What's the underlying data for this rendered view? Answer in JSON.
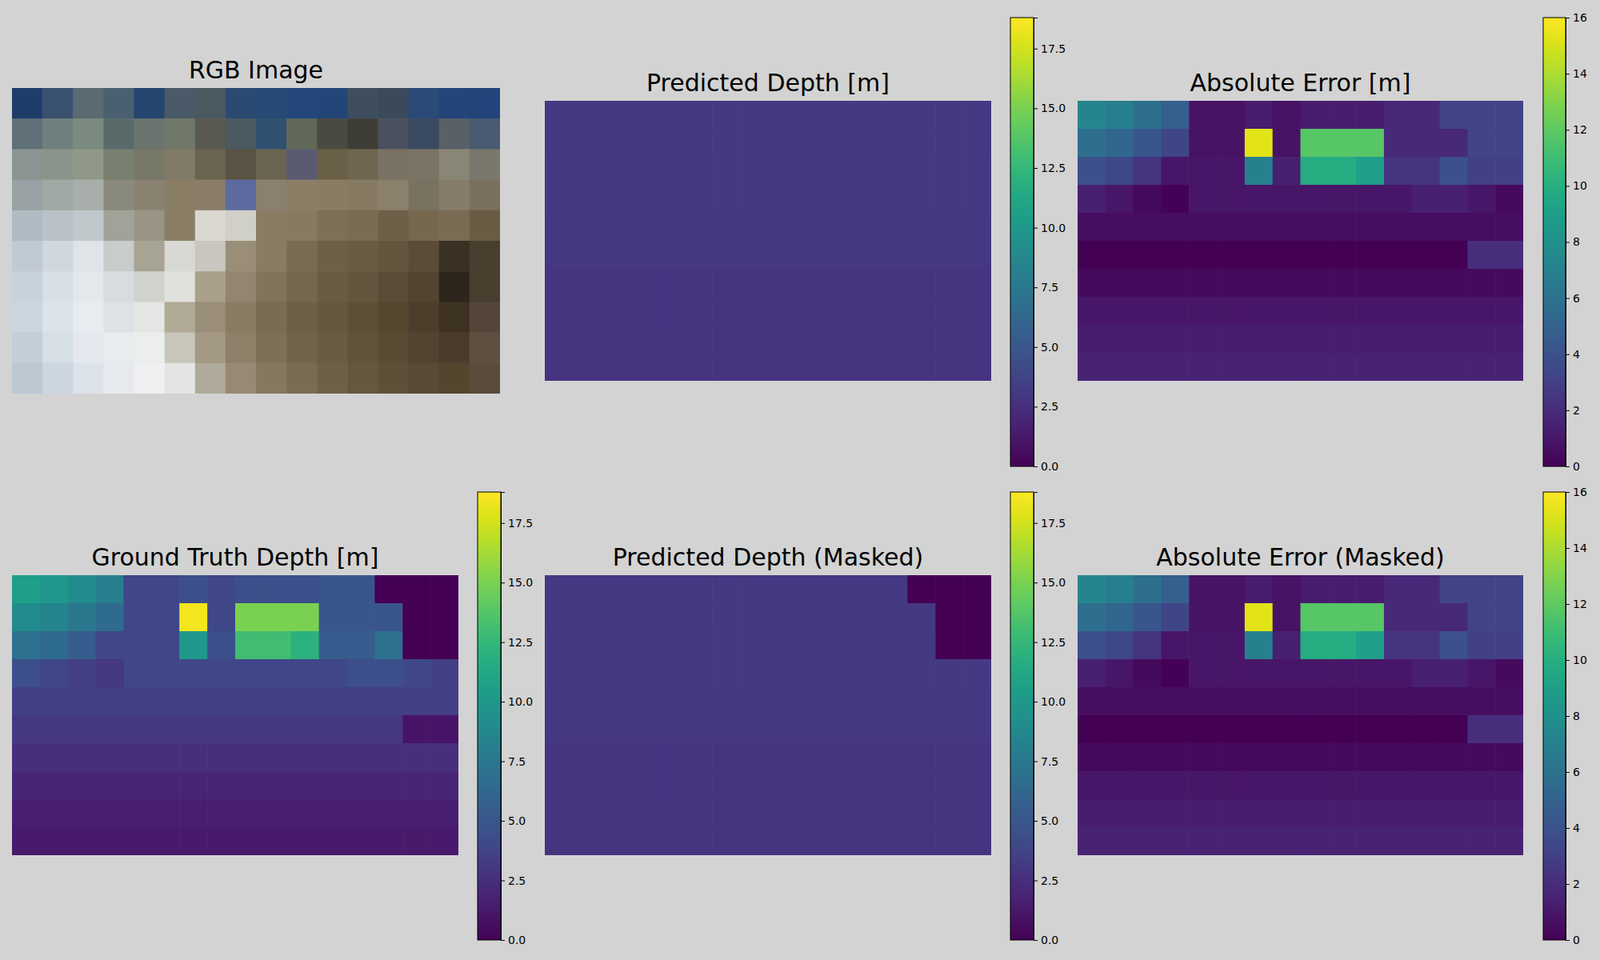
{
  "chart_data": [
    {
      "type": "image",
      "title": "RGB Image",
      "pixels": [
        [
          "#1f3d6b",
          "#3a5270",
          "#5a6a70",
          "#4a6070",
          "#25456f",
          "#4a5a68",
          "#4a5a60",
          "#2a4a72",
          "#264a74",
          "#23477a",
          "#234678",
          "#3e4e5e",
          "#3a4a5a",
          "#2a4a78",
          "#23457a",
          "#22447a"
        ],
        [
          "#607078",
          "#70807e",
          "#7a8a80",
          "#5a6a6a",
          "#6a7570",
          "#70786a",
          "#5a5a50",
          "#4a5a60",
          "#305070",
          "#606858",
          "#4a4a40",
          "#3e3e36",
          "#4a5060",
          "#3a4a60",
          "#5a6068",
          "#4a5a70"
        ],
        [
          "#8a9490",
          "#8a948a",
          "#909888",
          "#7a8070",
          "#787868",
          "#807a66",
          "#6a6450",
          "#5a5444",
          "#6a6450",
          "#5a5a70",
          "#6a6048",
          "#6e6650",
          "#7a7262",
          "#7a7464",
          "#8a8676",
          "#7a786c"
        ],
        [
          "#98a2a4",
          "#a0a8a4",
          "#a8aeaa",
          "#8a8a7c",
          "#8a8270",
          "#8a7e66",
          "#8a7e68",
          "#5c6aa0",
          "#8a8070",
          "#8a7e66",
          "#8a7c62",
          "#867a62",
          "#8a806c",
          "#7a7260",
          "#867c6a",
          "#7a705e"
        ],
        [
          "#b0bac2",
          "#b8c2c8",
          "#c0c8cc",
          "#a0a498",
          "#9a9484",
          "#8a7e66",
          "#dad8d0",
          "#d0d0c8",
          "#8a7c62",
          "#867a60",
          "#7e7058",
          "#7a6c54",
          "#6e6048",
          "#76684e",
          "#7a6c54",
          "#6a5c44"
        ],
        [
          "#c0cad2",
          "#d0d8de",
          "#dfe4e8",
          "#c8ccca",
          "#a8a494",
          "#d8d8d4",
          "#c8c6be",
          "#9a8e78",
          "#8a7c62",
          "#7a6c52",
          "#6e6046",
          "#6a5c42",
          "#64563e",
          "#5a4c36",
          "#3a3024",
          "#4a3e2e"
        ],
        [
          "#c8d2da",
          "#d8e0e6",
          "#e4e8ec",
          "#d6dce0",
          "#d0d2cc",
          "#e0e0dc",
          "#a8a08a",
          "#928670",
          "#82745a",
          "#76684e",
          "#6a5c42",
          "#64563e",
          "#5a4c36",
          "#52442e",
          "#2e261c",
          "#4a3e2e"
        ],
        [
          "#ccd6de",
          "#dce4ea",
          "#e8ecf0",
          "#dde2e6",
          "#e4e6e4",
          "#b0aa96",
          "#9a8e78",
          "#8a7c64",
          "#7a6c54",
          "#6e6048",
          "#66583e",
          "#5e5038",
          "#56482e",
          "#4c3e2a",
          "#3e3222",
          "#54463a"
        ],
        [
          "#c4ced8",
          "#d6dee6",
          "#e4e8ee",
          "#e8ecee",
          "#eceeee",
          "#c8c6ba",
          "#a29884",
          "#8e8068",
          "#7e7058",
          "#72644a",
          "#6a5c42",
          "#62543a",
          "#5a4c34",
          "#524430",
          "#4a3c2a",
          "#5e5040"
        ],
        [
          "#bcc8d2",
          "#ccd6e0",
          "#dce2ea",
          "#e6eaee",
          "#f0f0f2",
          "#e4e4e2",
          "#b0aa9a",
          "#968a74",
          "#86785e",
          "#7a6c52",
          "#6e6048",
          "#66583e",
          "#5e5038",
          "#584a34",
          "#54462e",
          "#5a4c3a"
        ]
      ]
    },
    {
      "type": "heatmap",
      "title": "Predicted Depth [m]",
      "tick_labels": false,
      "values": [
        [
          3.2,
          3.2,
          3.2,
          3.2,
          3.2,
          3.2,
          3.2,
          3.2,
          3.2,
          3.2,
          3.2,
          3.2,
          3.2,
          3.2,
          3.2,
          3.2
        ],
        [
          3.2,
          3.2,
          3.2,
          3.2,
          3.2,
          3.2,
          3.2,
          3.2,
          3.2,
          3.2,
          3.2,
          3.2,
          3.2,
          3.2,
          3.2,
          3.2
        ],
        [
          3.1,
          3.1,
          3.1,
          3.1,
          3.1,
          3.1,
          3.1,
          3.1,
          3.1,
          3.1,
          3.1,
          3.1,
          3.1,
          3.1,
          3.1,
          3.1
        ],
        [
          3.1,
          3.1,
          3.1,
          3.1,
          3.1,
          3.1,
          3.1,
          3.1,
          3.1,
          3.1,
          3.1,
          3.1,
          3.1,
          3.1,
          3.1,
          3.1
        ],
        [
          3,
          3,
          3,
          3,
          3,
          3,
          3,
          3,
          3,
          3,
          3,
          3,
          3,
          3,
          3,
          3
        ],
        [
          3,
          3,
          3,
          3,
          3,
          3,
          3,
          3,
          3,
          3,
          3,
          3,
          3,
          3,
          3,
          3
        ],
        [
          2.9,
          2.9,
          2.9,
          2.9,
          2.9,
          2.9,
          2.9,
          2.9,
          2.9,
          2.9,
          2.9,
          2.9,
          2.9,
          2.9,
          2.9,
          2.9
        ],
        [
          2.9,
          2.9,
          2.9,
          2.9,
          2.9,
          2.9,
          2.9,
          2.9,
          2.9,
          2.9,
          2.9,
          2.9,
          2.9,
          2.9,
          2.9,
          2.9
        ],
        [
          2.8,
          2.8,
          2.8,
          2.8,
          2.8,
          2.8,
          2.8,
          2.8,
          2.8,
          2.8,
          2.8,
          2.8,
          2.8,
          2.8,
          2.8,
          2.8
        ],
        [
          2.8,
          2.8,
          2.8,
          2.8,
          2.8,
          2.8,
          2.8,
          2.8,
          2.8,
          2.8,
          2.8,
          2.8,
          2.8,
          2.8,
          2.8,
          2.8
        ]
      ],
      "colorbar": {
        "range": [
          0,
          18.8
        ],
        "ticks": [
          {
            "value": 0,
            "label": "0.0"
          },
          2.5,
          {
            "value": 5,
            "label": "5.0"
          },
          7.5,
          {
            "value": 10,
            "label": "10.0"
          },
          12.5,
          {
            "value": 15,
            "label": "15.0"
          },
          17.5
        ]
      }
    },
    {
      "type": "heatmap",
      "title": "Absolute Error [m]",
      "tick_labels": false,
      "values": [
        [
          7.3,
          6.8,
          5.8,
          4.8,
          0.8,
          0.8,
          1.3,
          0.8,
          1.3,
          1.3,
          1.3,
          1.8,
          1.8,
          3.2,
          3.2,
          3.2
        ],
        [
          5.8,
          5.3,
          4.3,
          3.3,
          0.8,
          0.8,
          15.3,
          0.8,
          11.8,
          11.8,
          11.8,
          1.8,
          1.8,
          1.8,
          3.2,
          3.2
        ],
        [
          3.9,
          3.4,
          2.4,
          0.9,
          0.9,
          0.9,
          6.9,
          1.4,
          9.9,
          9.9,
          8.9,
          2.4,
          2.4,
          3.9,
          3.1,
          3.1
        ],
        [
          1.4,
          0.9,
          0.4,
          0.1,
          0.9,
          0.9,
          0.9,
          0.9,
          0.9,
          0.9,
          0.9,
          0.9,
          1.4,
          1.4,
          0.9,
          0.4
        ],
        [
          0.5,
          0.5,
          0.5,
          0.5,
          0.5,
          0.5,
          0.5,
          0.5,
          0.5,
          0.5,
          0.5,
          0.5,
          0.5,
          0.5,
          0.5,
          0.5
        ],
        [
          0,
          0,
          0,
          0,
          0,
          0,
          0,
          0,
          0,
          0,
          0,
          0,
          0,
          0,
          2,
          2
        ],
        [
          0.4,
          0.4,
          0.4,
          0.4,
          0.4,
          0.4,
          0.4,
          0.4,
          0.4,
          0.4,
          0.4,
          0.4,
          0.4,
          0.4,
          0.4,
          0.4
        ],
        [
          0.9,
          0.9,
          0.9,
          0.9,
          0.9,
          0.9,
          0.9,
          0.9,
          0.9,
          0.9,
          0.9,
          0.9,
          0.9,
          0.9,
          0.9,
          0.9
        ],
        [
          1.2,
          1.2,
          1.2,
          1.2,
          1.2,
          1.2,
          1.2,
          1.2,
          1.2,
          1.2,
          1.2,
          1.2,
          1.2,
          1.2,
          1.2,
          1.2
        ],
        [
          1.5,
          1.5,
          1.5,
          1.5,
          1.5,
          1.5,
          1.5,
          1.5,
          1.5,
          1.5,
          1.5,
          1.5,
          1.5,
          1.5,
          1.5,
          1.5
        ]
      ],
      "colorbar": {
        "range": [
          0,
          16
        ],
        "ticks": [
          0,
          2,
          4,
          6,
          8,
          10,
          12,
          14,
          16
        ]
      }
    },
    {
      "type": "heatmap",
      "title": "Ground Truth Depth [m]",
      "tick_labels": false,
      "values": [
        [
          10.5,
          10,
          9,
          8,
          4,
          4,
          4.5,
          4,
          4.5,
          4.5,
          4.5,
          5,
          5,
          0,
          0,
          0
        ],
        [
          9,
          8.5,
          7.5,
          6.5,
          4,
          4,
          18.5,
          4,
          15,
          15,
          15,
          5,
          5,
          5,
          0,
          0
        ],
        [
          7,
          6.5,
          5.5,
          4,
          4,
          4,
          10,
          4.5,
          13,
          13,
          12,
          5.5,
          5.5,
          7,
          0,
          0
        ],
        [
          4.5,
          4,
          3.5,
          3,
          4,
          4,
          4,
          4,
          4,
          4,
          4,
          4,
          4.5,
          4.5,
          4,
          3.5
        ],
        [
          3.5,
          3.5,
          3.5,
          3.5,
          3.5,
          3.5,
          3.5,
          3.5,
          3.5,
          3.5,
          3.5,
          3.5,
          3.5,
          3.5,
          3.5,
          3.5
        ],
        [
          3,
          3,
          3,
          3,
          3,
          3,
          3,
          3,
          3,
          3,
          3,
          3,
          3,
          3,
          1,
          1
        ],
        [
          2.5,
          2.5,
          2.5,
          2.5,
          2.5,
          2.5,
          2.5,
          2.5,
          2.5,
          2.5,
          2.5,
          2.5,
          2.5,
          2.5,
          2.5,
          2.5
        ],
        [
          2,
          2,
          2,
          2,
          2,
          2,
          2,
          2,
          2,
          2,
          2,
          2,
          2,
          2,
          2,
          2
        ],
        [
          1.6,
          1.6,
          1.6,
          1.6,
          1.6,
          1.6,
          1.6,
          1.6,
          1.6,
          1.6,
          1.6,
          1.6,
          1.6,
          1.6,
          1.6,
          1.6
        ],
        [
          1.3,
          1.3,
          1.3,
          1.3,
          1.3,
          1.3,
          1.3,
          1.3,
          1.3,
          1.3,
          1.3,
          1.3,
          1.3,
          1.3,
          1.3,
          1.3
        ]
      ],
      "colorbar": {
        "range": [
          0,
          18.8
        ],
        "ticks": [
          {
            "value": 0,
            "label": "0.0"
          },
          2.5,
          {
            "value": 5,
            "label": "5.0"
          },
          7.5,
          {
            "value": 10,
            "label": "10.0"
          },
          12.5,
          {
            "value": 15,
            "label": "15.0"
          },
          17.5
        ]
      }
    },
    {
      "type": "heatmap",
      "title": "Predicted Depth (Masked)",
      "tick_labels": false,
      "values": [
        [
          3.2,
          3.2,
          3.2,
          3.2,
          3.2,
          3.2,
          3.2,
          3.2,
          3.2,
          3.2,
          3.2,
          3.2,
          3.2,
          0,
          0,
          0
        ],
        [
          3.2,
          3.2,
          3.2,
          3.2,
          3.2,
          3.2,
          3.2,
          3.2,
          3.2,
          3.2,
          3.2,
          3.2,
          3.2,
          3.2,
          0,
          0
        ],
        [
          3.1,
          3.1,
          3.1,
          3.1,
          3.1,
          3.1,
          3.1,
          3.1,
          3.1,
          3.1,
          3.1,
          3.1,
          3.1,
          3.1,
          0,
          0
        ],
        [
          3.1,
          3.1,
          3.1,
          3.1,
          3.1,
          3.1,
          3.1,
          3.1,
          3.1,
          3.1,
          3.1,
          3.1,
          3.1,
          3.1,
          3.1,
          3.1
        ],
        [
          3,
          3,
          3,
          3,
          3,
          3,
          3,
          3,
          3,
          3,
          3,
          3,
          3,
          3,
          3,
          3
        ],
        [
          3,
          3,
          3,
          3,
          3,
          3,
          3,
          3,
          3,
          3,
          3,
          3,
          3,
          3,
          3,
          3
        ],
        [
          2.9,
          2.9,
          2.9,
          2.9,
          2.9,
          2.9,
          2.9,
          2.9,
          2.9,
          2.9,
          2.9,
          2.9,
          2.9,
          2.9,
          2.9,
          2.9
        ],
        [
          2.9,
          2.9,
          2.9,
          2.9,
          2.9,
          2.9,
          2.9,
          2.9,
          2.9,
          2.9,
          2.9,
          2.9,
          2.9,
          2.9,
          2.9,
          2.9
        ],
        [
          2.8,
          2.8,
          2.8,
          2.8,
          2.8,
          2.8,
          2.8,
          2.8,
          2.8,
          2.8,
          2.8,
          2.8,
          2.8,
          2.8,
          2.8,
          2.8
        ],
        [
          2.8,
          2.8,
          2.8,
          2.8,
          2.8,
          2.8,
          2.8,
          2.8,
          2.8,
          2.8,
          2.8,
          2.8,
          2.8,
          2.8,
          2.8,
          2.8
        ]
      ],
      "colorbar": {
        "range": [
          0,
          18.8
        ],
        "ticks": [
          {
            "value": 0,
            "label": "0.0"
          },
          2.5,
          {
            "value": 5,
            "label": "5.0"
          },
          7.5,
          {
            "value": 10,
            "label": "10.0"
          },
          12.5,
          {
            "value": 15,
            "label": "15.0"
          },
          17.5
        ]
      }
    },
    {
      "type": "heatmap",
      "title": "Absolute Error (Masked)",
      "tick_labels": false,
      "values": [
        [
          7.3,
          6.8,
          5.8,
          4.8,
          0.8,
          0.8,
          1.3,
          0.8,
          1.3,
          1.3,
          1.3,
          1.8,
          1.8,
          3.2,
          3.2,
          3.2
        ],
        [
          5.8,
          5.3,
          4.3,
          3.3,
          0.8,
          0.8,
          15.3,
          0.8,
          11.8,
          11.8,
          11.8,
          1.8,
          1.8,
          1.8,
          3.2,
          3.2
        ],
        [
          3.9,
          3.4,
          2.4,
          0.9,
          0.9,
          0.9,
          6.9,
          1.4,
          9.9,
          9.9,
          8.9,
          2.4,
          2.4,
          3.9,
          3.1,
          3.1
        ],
        [
          1.4,
          0.9,
          0.4,
          0.1,
          0.9,
          0.9,
          0.9,
          0.9,
          0.9,
          0.9,
          0.9,
          0.9,
          1.4,
          1.4,
          0.9,
          0.4
        ],
        [
          0.5,
          0.5,
          0.5,
          0.5,
          0.5,
          0.5,
          0.5,
          0.5,
          0.5,
          0.5,
          0.5,
          0.5,
          0.5,
          0.5,
          0.5,
          0.5
        ],
        [
          0,
          0,
          0,
          0,
          0,
          0,
          0,
          0,
          0,
          0,
          0,
          0,
          0,
          0,
          2,
          2
        ],
        [
          0.4,
          0.4,
          0.4,
          0.4,
          0.4,
          0.4,
          0.4,
          0.4,
          0.4,
          0.4,
          0.4,
          0.4,
          0.4,
          0.4,
          0.4,
          0.4
        ],
        [
          0.9,
          0.9,
          0.9,
          0.9,
          0.9,
          0.9,
          0.9,
          0.9,
          0.9,
          0.9,
          0.9,
          0.9,
          0.9,
          0.9,
          0.9,
          0.9
        ],
        [
          1.2,
          1.2,
          1.2,
          1.2,
          1.2,
          1.2,
          1.2,
          1.2,
          1.2,
          1.2,
          1.2,
          1.2,
          1.2,
          1.2,
          1.2,
          1.2
        ],
        [
          1.5,
          1.5,
          1.5,
          1.5,
          1.5,
          1.5,
          1.5,
          1.5,
          1.5,
          1.5,
          1.5,
          1.5,
          1.5,
          1.5,
          1.5,
          1.5
        ]
      ],
      "colorbar": {
        "range": [
          0,
          16
        ],
        "ticks": [
          0,
          2,
          4,
          6,
          8,
          10,
          12,
          14,
          16
        ]
      }
    }
  ]
}
